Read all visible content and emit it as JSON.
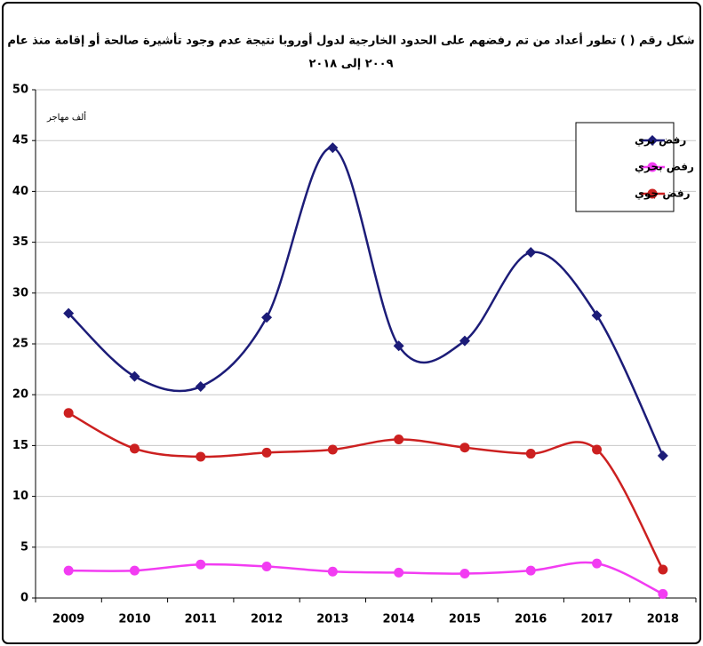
{
  "chart_data": {
    "type": "line",
    "title": "شكل رقم ( ) تطور أعداد من تم رفضهم على الحدود الخارجية لدول أوروبا نتيجة عدم وجود تأشيرة صالحة أو إقامة منذ عام",
    "subtitle": "٢٠٠٩ إلى ٢٠١٨",
    "y_label": "ألف مهاجر",
    "categories": [
      "2009",
      "2010",
      "2011",
      "2012",
      "2013",
      "2014",
      "2015",
      "2016",
      "2017",
      "2018"
    ],
    "series": [
      {
        "name": "رفض بري",
        "color": "#1c1c78",
        "marker": "diamond",
        "values": [
          28,
          21.8,
          20.8,
          27.6,
          44.3,
          24.8,
          25.3,
          34,
          27.8,
          14
        ]
      },
      {
        "name": "رفض بحري",
        "color": "#f23cf2",
        "marker": "circle",
        "values": [
          2.7,
          2.7,
          3.3,
          3.1,
          2.6,
          2.5,
          2.4,
          2.7,
          3.4,
          0.4
        ]
      },
      {
        "name": "رفض جوي",
        "color": "#cc2020",
        "marker": "circle",
        "values": [
          18.2,
          14.7,
          13.9,
          14.3,
          14.6,
          15.6,
          14.8,
          14.2,
          14.6,
          2.8
        ]
      }
    ],
    "ylim": [
      0,
      50
    ],
    "yticks": [
      0,
      5,
      10,
      15,
      20,
      25,
      30,
      35,
      40,
      45,
      50
    ],
    "grid": true,
    "legend": "upper right"
  }
}
